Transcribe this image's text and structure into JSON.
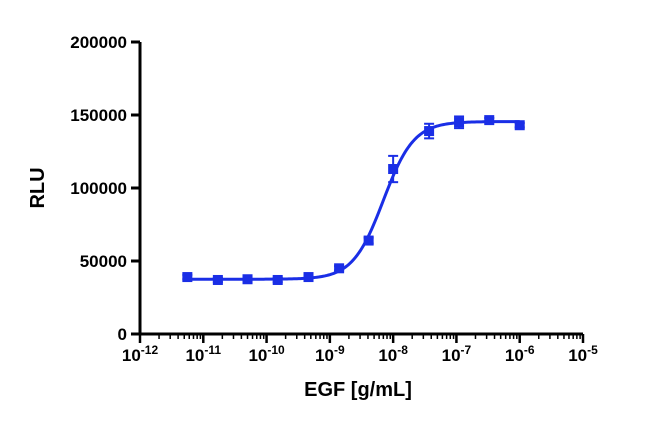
{
  "chart_data": {
    "type": "scatter",
    "title": "",
    "xlabel": "EGF [g/mL]",
    "ylabel": "RLU",
    "x_scale": "log10",
    "xlim": [
      1e-12,
      1e-05
    ],
    "ylim": [
      0,
      200000
    ],
    "x_ticks": [
      {
        "base": "10",
        "exp": "-12",
        "value": 1e-12
      },
      {
        "base": "10",
        "exp": "-11",
        "value": 1e-11
      },
      {
        "base": "10",
        "exp": "-10",
        "value": 1e-10
      },
      {
        "base": "10",
        "exp": "-9",
        "value": 1e-09
      },
      {
        "base": "10",
        "exp": "-8",
        "value": 1e-08
      },
      {
        "base": "10",
        "exp": "-7",
        "value": 1e-07
      },
      {
        "base": "10",
        "exp": "-6",
        "value": 1e-06
      },
      {
        "base": "10",
        "exp": "-5",
        "value": 1e-05
      }
    ],
    "y_ticks": [
      {
        "label": "0",
        "value": 0
      },
      {
        "label": "50000",
        "value": 50000
      },
      {
        "label": "100000",
        "value": 100000
      },
      {
        "label": "150000",
        "value": 150000
      },
      {
        "label": "200000",
        "value": 200000
      }
    ],
    "grid": false,
    "legend": "none",
    "series_color": "#1a2ee6",
    "points": [
      {
        "x": 5.6e-12,
        "y": 39000,
        "err": 1500
      },
      {
        "x": 1.7e-11,
        "y": 37000,
        "err": 1500
      },
      {
        "x": 5e-11,
        "y": 37500,
        "err": 1500
      },
      {
        "x": 1.5e-10,
        "y": 37000,
        "err": 1500
      },
      {
        "x": 4.6e-10,
        "y": 39000,
        "err": 1500
      },
      {
        "x": 1.4e-09,
        "y": 45000,
        "err": 1500
      },
      {
        "x": 4.1e-09,
        "y": 64000,
        "err": 2000
      },
      {
        "x": 1e-08,
        "y": 113000,
        "err": 9000
      },
      {
        "x": 3.7e-08,
        "y": 139000,
        "err": 5000
      },
      {
        "x": 1.1e-07,
        "y": 145000,
        "err": 4000
      },
      {
        "x": 3.3e-07,
        "y": 146500,
        "err": 1500
      },
      {
        "x": 1e-06,
        "y": 143000,
        "err": 1500
      }
    ],
    "fit": {
      "model": "four-parameter logistic",
      "bottom": 37500,
      "top": 145500,
      "ec50": 7e-09,
      "hill": 1.8,
      "x_range": [
        5.6e-12,
        1e-06
      ]
    }
  }
}
